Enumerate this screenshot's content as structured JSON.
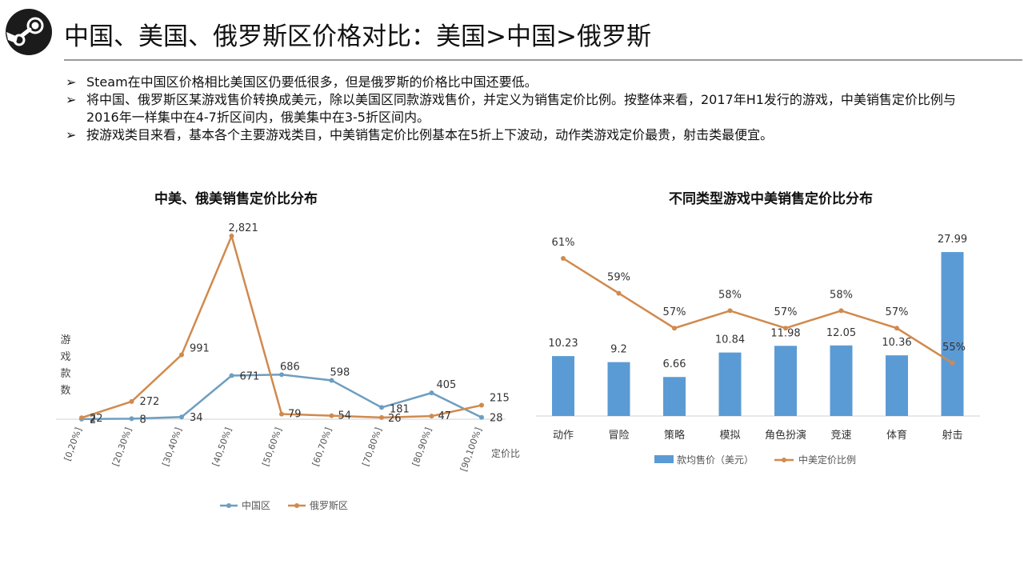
{
  "header": {
    "logo_icon": "steam-logo-icon",
    "title": "中国、美国、俄罗斯区价格对比：美国>中国>俄罗斯"
  },
  "bullets": [
    {
      "marker": "➢",
      "text": "Steam在中国区价格相比美国区仍要低很多，但是俄罗斯的价格比中国还要低。"
    },
    {
      "marker": "➢",
      "text": "将中国、俄罗斯区某游戏售价转换成美元，除以美国区同款游戏售价，并定义为销售定价比例。按整体来看，2017年H1发行的游戏，中美销售定价比例与2016年一样集中在4-7折区间内，俄美集中在3-5折区间内。"
    },
    {
      "marker": "➢",
      "text": "按游戏类目来看，基本各个主要游戏类目，中美销售定价比例基本在5折上下波动，动作类游戏定价最贵，射击类最便宜。"
    }
  ],
  "chart_data": [
    {
      "type": "line",
      "title": "中美、俄美销售定价比分布",
      "ylabel": "游戏款数",
      "xlabel": "定价比",
      "categories": [
        "[0,20%]",
        "[20,30%]",
        "[30,40%]",
        "[40,50%]",
        "[50,60%]",
        "[60,70%]",
        "[70,80%]",
        "[80,90%]",
        "[90,100%]"
      ],
      "series": [
        {
          "name": "中国区",
          "color": "#6d9ec0",
          "values": [
            2,
            8,
            34,
            671,
            686,
            598,
            181,
            405,
            28
          ]
        },
        {
          "name": "俄罗斯区",
          "color": "#d08a4e",
          "values": [
            22,
            272,
            991,
            2821,
            79,
            54,
            26,
            47,
            215
          ]
        }
      ],
      "ylim": [
        0,
        2821
      ],
      "grid": false,
      "legend": "bottom"
    },
    {
      "type": "bar",
      "title": "不同类型游戏中美销售定价比分布",
      "categories": [
        "动作",
        "冒险",
        "策略",
        "模拟",
        "角色扮演",
        "竞速",
        "体育",
        "射击"
      ],
      "series": [
        {
          "name": "款均售价（美元）",
          "type": "bar",
          "color": "#5b9bd5",
          "values": [
            10.23,
            9.2,
            6.66,
            10.84,
            11.98,
            12.05,
            10.36,
            27.99
          ],
          "labels": [
            "10.23",
            "9.2",
            "6.66",
            "10.84",
            "11.98",
            "12.05",
            "10.36",
            "27.99"
          ]
        },
        {
          "name": "中美定价比例",
          "type": "line",
          "color": "#d08a4e",
          "values": [
            61,
            59,
            57,
            58,
            57,
            58,
            57,
            55
          ],
          "labels": [
            "61%",
            "59%",
            "57%",
            "58%",
            "57%",
            "58%",
            "57%",
            "55%"
          ]
        }
      ],
      "grid": false,
      "legend": "bottom"
    }
  ]
}
